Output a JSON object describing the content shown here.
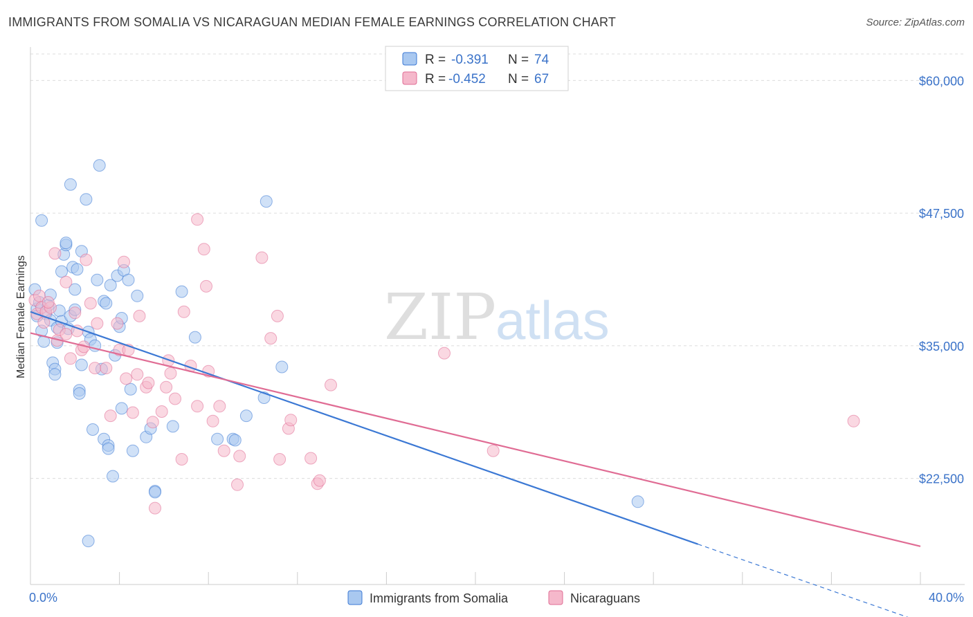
{
  "header": {
    "title": "IMMIGRANTS FROM SOMALIA VS NICARAGUAN MEDIAN FEMALE EARNINGS CORRELATION CHART",
    "source": "Source: ZipAtlas.com"
  },
  "watermark": {
    "zip": "ZIP",
    "atlas": "atlas"
  },
  "legend": {
    "rows": [
      {
        "r_label": "R =",
        "r_value": "-0.391",
        "n_label": "N =",
        "n_value": "74",
        "color": "#a9c8f0"
      },
      {
        "r_label": "R =",
        "r_value": "-0.452",
        "n_label": "N =",
        "n_value": "67",
        "color": "#f5b8cb"
      }
    ]
  },
  "bottom_legend": {
    "items": [
      {
        "label": "Immigrants from Somalia",
        "color": "#a9c8f0"
      },
      {
        "label": "Nicaraguans",
        "color": "#f5b8cb"
      }
    ]
  },
  "chart_data": {
    "type": "scatter",
    "title": "IMMIGRANTS FROM SOMALIA VS NICARAGUAN MEDIAN FEMALE EARNINGS CORRELATION CHART",
    "xlabel": "",
    "ylabel": "Median Female Earnings",
    "xlim": [
      0,
      40
    ],
    "ylim": [
      12500,
      62500
    ],
    "x_tick_labels": [
      "0.0%",
      "40.0%"
    ],
    "y_ticks": [
      22500,
      35000,
      47500,
      60000
    ],
    "y_tick_labels": [
      "$22,500",
      "$35,000",
      "$47,500",
      "$60,000"
    ],
    "grid": true,
    "series": [
      {
        "name": "Immigrants from Somalia",
        "color": "#3b78d4",
        "fill": "#a9c8f0",
        "trend": {
          "x0": 0,
          "y0": 38200,
          "x1": 30,
          "y1": 16300,
          "dashed_to_x": 40,
          "dashed_to_y": 9000
        },
        "points": [
          [
            0.2,
            40.3
          ],
          [
            0.3,
            38.5
          ],
          [
            0.4,
            39.1
          ],
          [
            0.5,
            36.4
          ],
          [
            0.5,
            46.8
          ],
          [
            0.6,
            35.4
          ],
          [
            0.7,
            38.0
          ],
          [
            0.8,
            38.8
          ],
          [
            0.9,
            37.4
          ],
          [
            0.9,
            39.8
          ],
          [
            1.0,
            33.4
          ],
          [
            1.1,
            32.8
          ],
          [
            1.1,
            32.3
          ],
          [
            1.2,
            36.7
          ],
          [
            1.3,
            38.3
          ],
          [
            1.4,
            37.3
          ],
          [
            1.4,
            42.0
          ],
          [
            1.5,
            43.6
          ],
          [
            1.6,
            44.5
          ],
          [
            1.6,
            44.7
          ],
          [
            1.7,
            36.6
          ],
          [
            1.8,
            50.2
          ],
          [
            1.8,
            37.8
          ],
          [
            1.9,
            42.4
          ],
          [
            2.0,
            38.4
          ],
          [
            2.0,
            40.3
          ],
          [
            2.1,
            42.2
          ],
          [
            2.2,
            30.8
          ],
          [
            2.2,
            30.5
          ],
          [
            2.3,
            33.2
          ],
          [
            2.3,
            43.9
          ],
          [
            2.5,
            48.8
          ],
          [
            2.6,
            36.3
          ],
          [
            2.7,
            35.6
          ],
          [
            2.8,
            27.1
          ],
          [
            3.0,
            41.2
          ],
          [
            3.1,
            52.0
          ],
          [
            3.2,
            32.8
          ],
          [
            3.3,
            39.2
          ],
          [
            3.3,
            26.2
          ],
          [
            3.4,
            39.0
          ],
          [
            3.5,
            25.6
          ],
          [
            3.5,
            25.3
          ],
          [
            3.6,
            40.7
          ],
          [
            3.7,
            22.7
          ],
          [
            3.8,
            34.1
          ],
          [
            3.9,
            41.6
          ],
          [
            4.0,
            36.8
          ],
          [
            4.1,
            29.1
          ],
          [
            4.1,
            37.6
          ],
          [
            4.2,
            42.1
          ],
          [
            4.4,
            41.2
          ],
          [
            4.5,
            30.9
          ],
          [
            4.6,
            25.1
          ],
          [
            4.8,
            39.7
          ],
          [
            5.2,
            26.4
          ],
          [
            5.4,
            27.2
          ],
          [
            5.6,
            21.3
          ],
          [
            5.6,
            21.2
          ],
          [
            6.4,
            27.4
          ],
          [
            6.8,
            40.1
          ],
          [
            7.4,
            35.8
          ],
          [
            8.4,
            26.2
          ],
          [
            9.1,
            26.2
          ],
          [
            9.2,
            26.1
          ],
          [
            9.7,
            28.4
          ],
          [
            10.5,
            30.1
          ],
          [
            10.6,
            48.6
          ],
          [
            11.3,
            33.0
          ],
          [
            27.3,
            20.3
          ],
          [
            2.6,
            16.6
          ],
          [
            0.3,
            37.8
          ],
          [
            1.2,
            35.3
          ],
          [
            2.9,
            35.0
          ]
        ]
      },
      {
        "name": "Nicaraguans",
        "color": "#e06c94",
        "fill": "#f5b8cb",
        "trend": {
          "x0": 0,
          "y0": 36200,
          "x1": 40,
          "y1": 16100
        },
        "points": [
          [
            0.2,
            39.3
          ],
          [
            0.3,
            38.0
          ],
          [
            0.4,
            39.7
          ],
          [
            0.5,
            38.6
          ],
          [
            0.6,
            37.2
          ],
          [
            0.7,
            38.2
          ],
          [
            0.9,
            38.6
          ],
          [
            1.1,
            43.7
          ],
          [
            1.2,
            35.5
          ],
          [
            1.3,
            36.5
          ],
          [
            1.6,
            36.1
          ],
          [
            1.6,
            41.0
          ],
          [
            1.8,
            33.8
          ],
          [
            2.0,
            38.1
          ],
          [
            2.1,
            36.4
          ],
          [
            2.3,
            34.6
          ],
          [
            2.5,
            43.1
          ],
          [
            2.7,
            39.0
          ],
          [
            2.9,
            32.9
          ],
          [
            3.0,
            37.1
          ],
          [
            3.4,
            32.9
          ],
          [
            3.6,
            28.4
          ],
          [
            3.9,
            37.1
          ],
          [
            4.0,
            34.6
          ],
          [
            4.2,
            42.9
          ],
          [
            4.3,
            31.9
          ],
          [
            4.6,
            28.7
          ],
          [
            4.8,
            32.3
          ],
          [
            4.9,
            37.8
          ],
          [
            5.2,
            31.1
          ],
          [
            5.3,
            31.5
          ],
          [
            5.5,
            27.8
          ],
          [
            5.6,
            19.7
          ],
          [
            6.1,
            31.1
          ],
          [
            6.2,
            33.6
          ],
          [
            6.3,
            32.4
          ],
          [
            6.5,
            30.0
          ],
          [
            6.8,
            24.3
          ],
          [
            6.9,
            38.2
          ],
          [
            7.2,
            33.1
          ],
          [
            7.5,
            29.3
          ],
          [
            7.5,
            46.9
          ],
          [
            7.8,
            44.1
          ],
          [
            7.9,
            40.6
          ],
          [
            8.0,
            32.6
          ],
          [
            8.2,
            27.9
          ],
          [
            8.5,
            29.3
          ],
          [
            8.7,
            25.1
          ],
          [
            9.3,
            21.9
          ],
          [
            9.4,
            24.6
          ],
          [
            10.4,
            43.3
          ],
          [
            10.8,
            35.7
          ],
          [
            11.1,
            37.8
          ],
          [
            11.2,
            24.3
          ],
          [
            11.6,
            27.2
          ],
          [
            11.7,
            28.0
          ],
          [
            12.6,
            24.4
          ],
          [
            12.9,
            22.0
          ],
          [
            13.0,
            22.3
          ],
          [
            13.5,
            31.3
          ],
          [
            18.6,
            34.3
          ],
          [
            20.8,
            25.1
          ],
          [
            37.0,
            27.9
          ],
          [
            5.9,
            28.8
          ],
          [
            0.8,
            39.1
          ],
          [
            2.4,
            34.9
          ],
          [
            4.4,
            34.6
          ]
        ]
      }
    ]
  }
}
